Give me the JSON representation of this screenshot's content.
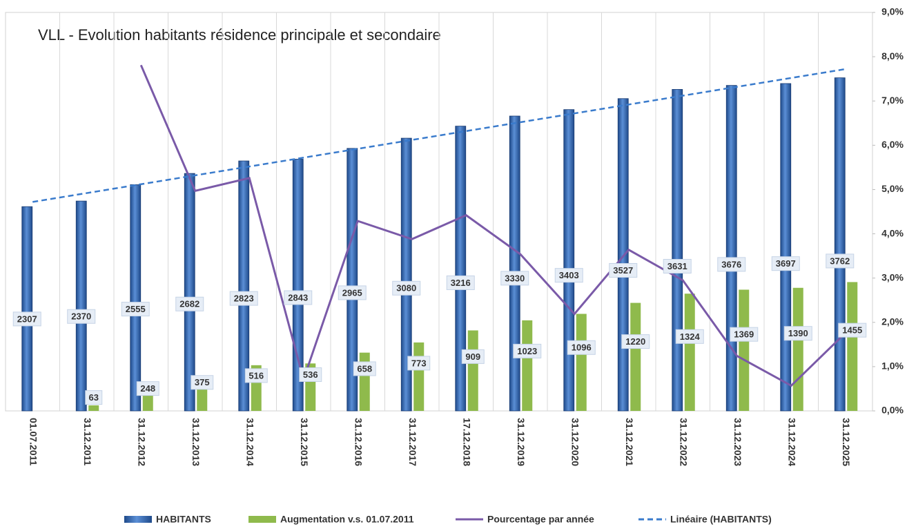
{
  "chart_data": {
    "type": "combo",
    "title": "VLL - Evolution habitants résidence principale et secondaire",
    "categories": [
      "01.07.2011",
      "31.12.2011",
      "31.12.2012",
      "31.12.2013",
      "31.12.2014",
      "31.12.2015",
      "31.12.2016",
      "31.12.2017",
      "17.12.2018",
      "31.12.2019",
      "31.12.2020",
      "31.12.2021",
      "31.12.2022",
      "31.12.2023",
      "31.12.2024",
      "31.12.2025"
    ],
    "ylim": [
      0,
      4500
    ],
    "y2lim": [
      0,
      9
    ],
    "y2ticks": [
      {
        "value": 0,
        "label": "0,0%"
      },
      {
        "value": 1,
        "label": "1,0%"
      },
      {
        "value": 2,
        "label": "2,0%"
      },
      {
        "value": 3,
        "label": "3,0%"
      },
      {
        "value": 4,
        "label": "4,0%"
      },
      {
        "value": 5,
        "label": "5,0%"
      },
      {
        "value": 6,
        "label": "6,0%"
      },
      {
        "value": 7,
        "label": "7,0%"
      },
      {
        "value": 8,
        "label": "8,0%"
      },
      {
        "value": 9,
        "label": "9,0%"
      }
    ],
    "grid": true,
    "legend": "bottom",
    "series": [
      {
        "name": "HABITANTS",
        "kind": "bar",
        "color": "#3467b0",
        "values": [
          2307,
          2370,
          2555,
          2682,
          2823,
          2843,
          2965,
          3080,
          3216,
          3330,
          3403,
          3527,
          3631,
          3676,
          3697,
          3762
        ]
      },
      {
        "name": "Augmentation v.s. 01.07.2011",
        "kind": "bar",
        "color": "#8fba4c",
        "values": [
          null,
          63,
          248,
          375,
          516,
          536,
          658,
          773,
          909,
          1023,
          1096,
          1220,
          1324,
          1369,
          1390,
          1455
        ]
      },
      {
        "name": "Pourcentage par année",
        "kind": "line",
        "axis": "y2",
        "color": "#7a5aa8",
        "values": [
          null,
          null,
          7.81,
          4.97,
          5.26,
          0.71,
          4.29,
          3.88,
          4.42,
          3.54,
          2.19,
          3.64,
          2.95,
          1.24,
          0.57,
          1.76
        ]
      },
      {
        "name": "Linéaire (HABITANTS)",
        "kind": "trend",
        "color": "#3a7bcc",
        "values": [
          2360,
          2460,
          2560,
          2660,
          2760,
          2860,
          2960,
          3060,
          3160,
          3260,
          3360,
          3460,
          3560,
          3660,
          3760,
          3860
        ]
      }
    ]
  }
}
